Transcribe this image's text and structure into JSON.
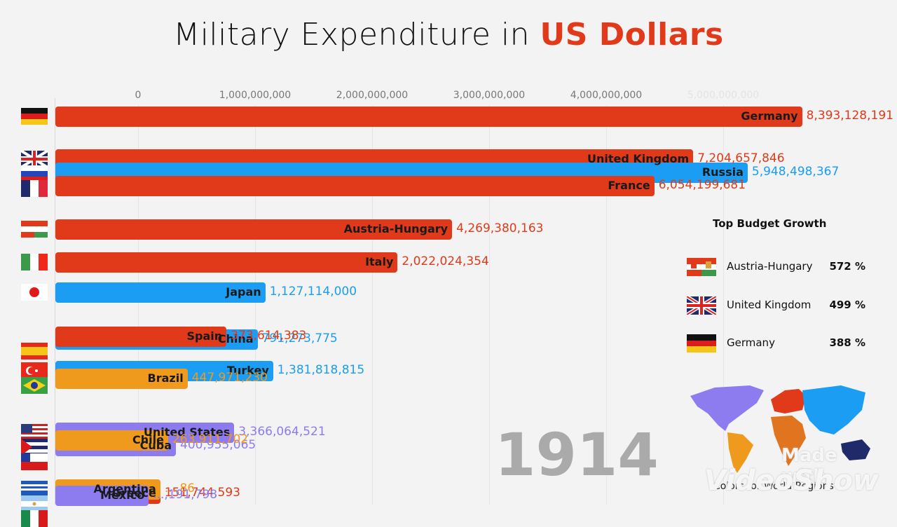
{
  "chart_data": {
    "type": "bar",
    "orientation": "horizontal",
    "title": "Military Expenditure in",
    "title_accent": "US Dollars",
    "year": "1914",
    "xlabel": "",
    "ylabel": "",
    "x_ticks": [
      "0",
      "1,000,000,000",
      "2,000,000,000",
      "3,000,000,000",
      "4,000,000,000",
      "5,000,000,000"
    ],
    "region_colors": {
      "Europe": "#e03a1a",
      "Asia": "#1a9df2",
      "Americas-North": "#8c7cf0",
      "Americas-South": "#ef9a1c",
      "Africa": "#e0741f",
      "Oceania": "#1f2a6b"
    },
    "series": [
      {
        "name": "Germany",
        "value": 8393128191,
        "value_label": "8,393,128,191",
        "region": "Europe",
        "color": "#e03a1a",
        "flag": "germany-flag",
        "row": 0,
        "offset": 0,
        "display": 0.96
      },
      {
        "name": "United Kingdom",
        "value": 7204657846,
        "value_label": "7,204,657,846",
        "region": "Europe",
        "color": "#e03a1a",
        "flag": "uk-flag",
        "row": 1,
        "offset": 0,
        "display": 0.82
      },
      {
        "name": "Russia",
        "value": 5948498367,
        "value_label": "5,948,498,367",
        "region": "Asia",
        "color": "#1a9df2",
        "flag": "russia-flag",
        "row": 1,
        "offset": 1,
        "display": 0.89
      },
      {
        "name": "France",
        "value": 6054199681,
        "value_label": "6,054,199,681",
        "region": "Europe",
        "color": "#e03a1a",
        "flag": "france-flag",
        "row": 1,
        "offset": 2,
        "display": 0.77
      },
      {
        "name": "Austria-Hungary",
        "value": 4269380163,
        "value_label": "4,269,380,163",
        "region": "Europe",
        "color": "#e03a1a",
        "flag": "austria-hungary-flag",
        "row": 2,
        "offset": 0,
        "display": 0.51
      },
      {
        "name": "Italy",
        "value": 2022024354,
        "value_label": "2,022,024,354",
        "region": "Europe",
        "color": "#e03a1a",
        "flag": "italy-flag",
        "row": 3,
        "offset": 0,
        "display": 0.44
      },
      {
        "name": "Japan",
        "value": 1127114000,
        "value_label": "1,127,114,000",
        "region": "Asia",
        "color": "#1a9df2",
        "flag": "japan-flag",
        "row": 4,
        "offset": 0,
        "display": 0.27
      },
      {
        "name": "China",
        "value": 791273775,
        "value_label": "791,273,775",
        "region": "Asia",
        "color": "#1a9df2",
        "flag": "china-flag",
        "row": 5,
        "offset": 0.2,
        "display": 0.26
      },
      {
        "name": "Spain",
        "value": 373614383,
        "value_label": "373,614,383",
        "region": "Europe",
        "color": "#e03a1a",
        "flag": "spain-flag",
        "row": 5,
        "offset": 0,
        "display": 0.22
      },
      {
        "name": "Turkey",
        "value": 1381818815,
        "value_label": "1,381,818,815",
        "region": "Asia",
        "color": "#1a9df2",
        "flag": "turkey-flag",
        "row": 6,
        "offset": 0,
        "display": 0.28
      },
      {
        "name": "Brazil",
        "value": 447971230,
        "value_label": "447,971,230",
        "region": "Americas-South",
        "color": "#ef9a1c",
        "flag": "brazil-flag",
        "row": 6,
        "offset": 0.6,
        "display": 0.17
      },
      {
        "name": "United States",
        "value": 3366064521,
        "value_label": "3,366,064,521",
        "region": "Americas-North",
        "color": "#8c7cf0",
        "flag": "usa-flag",
        "row": 7,
        "offset": 0,
        "display": 0.23
      },
      {
        "name": "Cuba",
        "value": 400955065,
        "value_label": "400,955,065",
        "region": "Americas-North",
        "color": "#8c7cf0",
        "flag": "cuba-flag",
        "row": 7,
        "offset": 1.0,
        "display": 0.155
      },
      {
        "name": "Chile",
        "value": 263911702,
        "value_label": "263,911,702",
        "region": "Americas-South",
        "color": "#ef9a1c",
        "flag": "chile-flag",
        "row": 7,
        "offset": 0.6,
        "display": 0.145
      },
      {
        "name": "Greece",
        "value": 151744593,
        "value_label": "151,744,593",
        "region": "Europe",
        "color": "#e03a1a",
        "flag": "greece-flag",
        "row": 8,
        "offset": 0.3,
        "display": 0.135
      },
      {
        "name": "Argentina",
        "value": 0,
        "value_label": "...,86",
        "region": "Americas-South",
        "color": "#ef9a1c",
        "flag": "argentina-flag",
        "row": 8,
        "offset": 0,
        "display": 0.135
      },
      {
        "name": "Mexico",
        "value": 0,
        "value_label": "...,191,798",
        "region": "Americas-North",
        "color": "#8c7cf0",
        "flag": "mexico-flag",
        "row": 8,
        "offset": 0.45,
        "display": 0.12
      }
    ]
  },
  "growth_panel": {
    "title": "Top Budget Growth",
    "items": [
      {
        "name": "Austria-Hungary",
        "pct": "572 %",
        "flag": "austria-hungary-flag"
      },
      {
        "name": "United Kingdom",
        "pct": "499 %",
        "flag": "uk-flag"
      },
      {
        "name": "Germany",
        "pct": "388 %",
        "flag": "germany-flag"
      }
    ]
  },
  "map": {
    "caption": "Colors for World Regions"
  },
  "watermark": {
    "line1": "Made with",
    "line2": "VideoShow"
  }
}
